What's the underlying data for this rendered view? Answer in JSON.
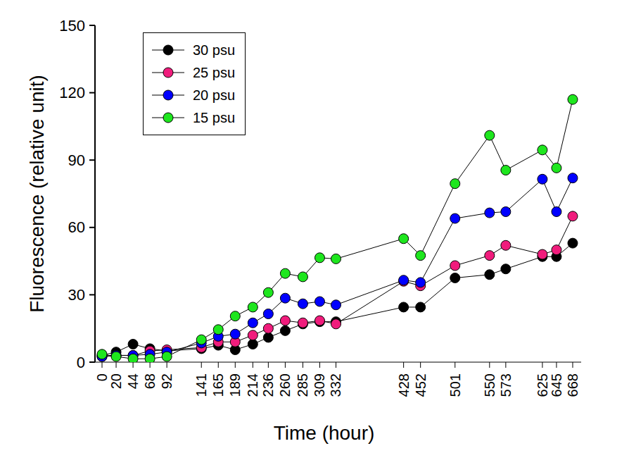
{
  "chart_data": {
    "type": "line",
    "x_label": "Time (hour)",
    "y_label": "Fluorescence (relative unit)",
    "x": [
      0,
      20,
      44,
      68,
      92,
      141,
      165,
      189,
      214,
      236,
      260,
      285,
      309,
      332,
      428,
      452,
      501,
      550,
      573,
      625,
      645,
      668
    ],
    "xlim": [
      -10,
      680
    ],
    "xticks": [
      0,
      20,
      44,
      68,
      92,
      141,
      165,
      189,
      214,
      236,
      260,
      285,
      309,
      332,
      428,
      452,
      501,
      550,
      573,
      625,
      645,
      668
    ],
    "ylim": [
      0,
      150
    ],
    "yticks": [
      0,
      30,
      60,
      90,
      120,
      150
    ],
    "grid": false,
    "legend": "upper left",
    "marker": "circle",
    "series": [
      {
        "name": "30 psu",
        "color": "#000000",
        "values": [
          3,
          4.5,
          8,
          6,
          5,
          6,
          7.5,
          5.5,
          8,
          11,
          14,
          17,
          18,
          18,
          24.5,
          24.5,
          37.5,
          39,
          41.5,
          47,
          47,
          53
        ]
      },
      {
        "name": "25 psu",
        "color": "#f01c7c",
        "values": [
          2.5,
          3,
          3,
          5,
          5.5,
          6.5,
          9,
          9,
          12,
          15,
          18.5,
          17.5,
          18.5,
          17,
          36,
          34,
          43,
          47.5,
          52,
          48,
          50,
          65
        ]
      },
      {
        "name": "20 psu",
        "color": "#0000ff",
        "values": [
          2.5,
          3,
          3,
          3.5,
          4.5,
          8.5,
          11.5,
          12.5,
          17.5,
          21.5,
          28.5,
          26,
          27,
          25.5,
          36.5,
          35.5,
          64,
          66.5,
          67,
          81.5,
          67,
          82
        ]
      },
      {
        "name": "15 psu",
        "color": "#1ee61e",
        "values": [
          3.5,
          2.5,
          1.5,
          1.5,
          2.5,
          10,
          14.5,
          20.5,
          24.5,
          31,
          39.5,
          38,
          46.5,
          46,
          55,
          47.5,
          79.5,
          101,
          85.5,
          94.5,
          86.5,
          117
        ]
      }
    ]
  }
}
